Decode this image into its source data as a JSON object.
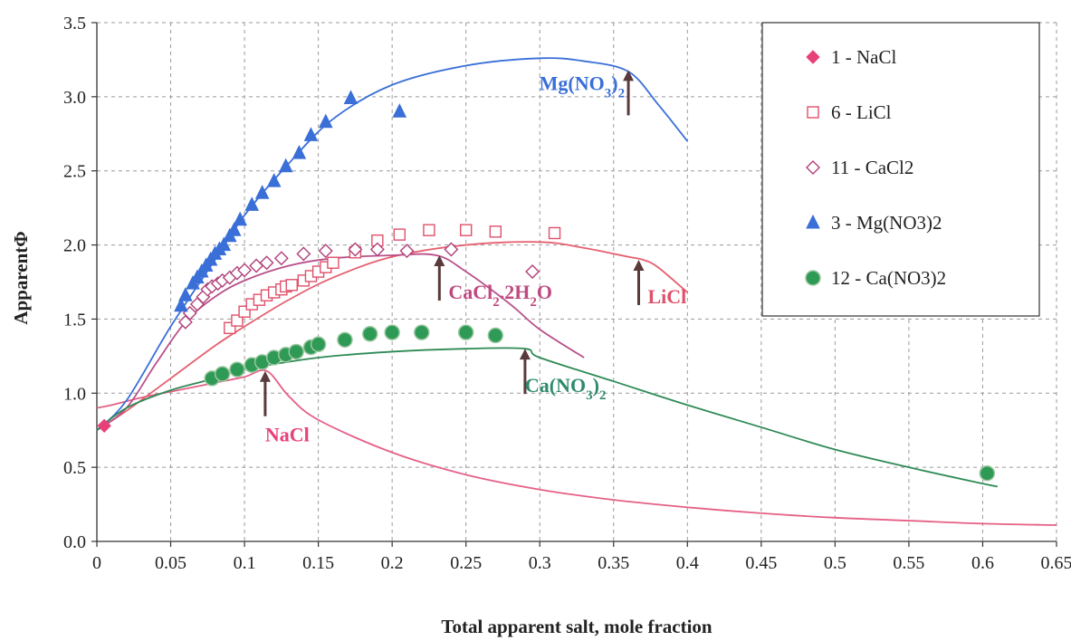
{
  "chart_data": {
    "type": "scatter",
    "xlabel": "Total apparent salt, mole fraction",
    "ylabel": "ApparentΦ",
    "xlim": [
      0,
      0.65
    ],
    "ylim": [
      0,
      3.5
    ],
    "x_ticks": [
      "0",
      "0.05",
      "0.1",
      "0.15",
      "0.2",
      "0.25",
      "0.3",
      "0.35",
      "0.4",
      "0.45",
      "0.5",
      "0.55",
      "0.6",
      "0.65"
    ],
    "y_ticks": [
      "0.0",
      "0.5",
      "1.0",
      "1.5",
      "2.0",
      "2.5",
      "3.0",
      "3.5"
    ],
    "grid": "dashed",
    "legend_position": "top-right",
    "series": [
      {
        "name": "1 - NaCl",
        "marker": "diamond-filled",
        "color": "#e8407a",
        "points": [
          [
            0.005,
            0.78
          ]
        ]
      },
      {
        "name": "6 - LiCl",
        "marker": "square-open",
        "color": "#e0506a",
        "points": [
          [
            0.09,
            1.44
          ],
          [
            0.095,
            1.49
          ],
          [
            0.1,
            1.55
          ],
          [
            0.105,
            1.6
          ],
          [
            0.11,
            1.63
          ],
          [
            0.115,
            1.66
          ],
          [
            0.12,
            1.68
          ],
          [
            0.125,
            1.7
          ],
          [
            0.128,
            1.72
          ],
          [
            0.132,
            1.73
          ],
          [
            0.14,
            1.76
          ],
          [
            0.145,
            1.79
          ],
          [
            0.15,
            1.82
          ],
          [
            0.155,
            1.85
          ],
          [
            0.16,
            1.88
          ],
          [
            0.175,
            1.95
          ],
          [
            0.19,
            2.03
          ],
          [
            0.205,
            2.07
          ],
          [
            0.225,
            2.1
          ],
          [
            0.25,
            2.1
          ],
          [
            0.27,
            2.09
          ],
          [
            0.31,
            2.08
          ]
        ]
      },
      {
        "name": "11 - CaCl2",
        "marker": "diamond-open",
        "color": "#b0407a",
        "points": [
          [
            0.06,
            1.48
          ],
          [
            0.063,
            1.54
          ],
          [
            0.068,
            1.6
          ],
          [
            0.072,
            1.65
          ],
          [
            0.075,
            1.7
          ],
          [
            0.078,
            1.72
          ],
          [
            0.082,
            1.74
          ],
          [
            0.085,
            1.76
          ],
          [
            0.09,
            1.78
          ],
          [
            0.095,
            1.81
          ],
          [
            0.1,
            1.83
          ],
          [
            0.108,
            1.86
          ],
          [
            0.115,
            1.88
          ],
          [
            0.125,
            1.91
          ],
          [
            0.14,
            1.94
          ],
          [
            0.155,
            1.96
          ],
          [
            0.175,
            1.97
          ],
          [
            0.19,
            1.97
          ],
          [
            0.21,
            1.96
          ],
          [
            0.24,
            1.97
          ],
          [
            0.295,
            1.82
          ]
        ]
      },
      {
        "name": "3 - Mg(NO3)2",
        "marker": "triangle-filled",
        "color": "#3a6fd8",
        "points": [
          [
            0.057,
            1.59
          ],
          [
            0.06,
            1.66
          ],
          [
            0.065,
            1.74
          ],
          [
            0.068,
            1.78
          ],
          [
            0.071,
            1.82
          ],
          [
            0.074,
            1.86
          ],
          [
            0.077,
            1.9
          ],
          [
            0.08,
            1.94
          ],
          [
            0.083,
            1.97
          ],
          [
            0.086,
            2.0
          ],
          [
            0.09,
            2.06
          ],
          [
            0.093,
            2.1
          ],
          [
            0.097,
            2.17
          ],
          [
            0.105,
            2.27
          ],
          [
            0.112,
            2.35
          ],
          [
            0.12,
            2.43
          ],
          [
            0.128,
            2.53
          ],
          [
            0.137,
            2.62
          ],
          [
            0.145,
            2.74
          ],
          [
            0.155,
            2.83
          ],
          [
            0.172,
            2.99
          ],
          [
            0.205,
            2.9
          ]
        ]
      },
      {
        "name": "12 - Ca(NO3)2",
        "marker": "circle-filled",
        "color": "#2e9a55",
        "points": [
          [
            0.078,
            1.1
          ],
          [
            0.085,
            1.13
          ],
          [
            0.095,
            1.16
          ],
          [
            0.105,
            1.19
          ],
          [
            0.112,
            1.21
          ],
          [
            0.12,
            1.24
          ],
          [
            0.128,
            1.26
          ],
          [
            0.135,
            1.28
          ],
          [
            0.145,
            1.31
          ],
          [
            0.15,
            1.33
          ],
          [
            0.168,
            1.36
          ],
          [
            0.185,
            1.4
          ],
          [
            0.2,
            1.41
          ],
          [
            0.22,
            1.41
          ],
          [
            0.25,
            1.41
          ],
          [
            0.27,
            1.39
          ],
          [
            0.603,
            0.46
          ]
        ]
      }
    ],
    "model_curves": [
      {
        "label": "NaCl",
        "color": "#e56086",
        "points": [
          [
            0.0,
            0.9
          ],
          [
            0.01,
            0.92
          ],
          [
            0.03,
            0.97
          ],
          [
            0.06,
            1.03
          ],
          [
            0.08,
            1.07
          ],
          [
            0.1,
            1.11
          ],
          [
            0.115,
            1.15
          ],
          [
            0.13,
            0.98
          ],
          [
            0.15,
            0.82
          ],
          [
            0.2,
            0.6
          ],
          [
            0.25,
            0.45
          ],
          [
            0.3,
            0.35
          ],
          [
            0.35,
            0.28
          ],
          [
            0.4,
            0.23
          ],
          [
            0.45,
            0.19
          ],
          [
            0.5,
            0.16
          ],
          [
            0.55,
            0.14
          ],
          [
            0.6,
            0.12
          ],
          [
            0.65,
            0.11
          ]
        ]
      },
      {
        "label": "LiCl",
        "color": "#e56070",
        "points": [
          [
            0.0,
            0.75
          ],
          [
            0.02,
            0.88
          ],
          [
            0.05,
            1.1
          ],
          [
            0.08,
            1.32
          ],
          [
            0.1,
            1.45
          ],
          [
            0.13,
            1.63
          ],
          [
            0.16,
            1.78
          ],
          [
            0.2,
            1.92
          ],
          [
            0.25,
            2.0
          ],
          [
            0.3,
            2.02
          ],
          [
            0.33,
            1.98
          ],
          [
            0.36,
            1.92
          ],
          [
            0.37,
            1.9
          ],
          [
            0.38,
            1.85
          ],
          [
            0.4,
            1.68
          ]
        ]
      },
      {
        "label": "CaCl2",
        "color": "#b8508a",
        "points": [
          [
            0.0,
            0.75
          ],
          [
            0.02,
            0.9
          ],
          [
            0.04,
            1.2
          ],
          [
            0.06,
            1.48
          ],
          [
            0.08,
            1.65
          ],
          [
            0.1,
            1.76
          ],
          [
            0.13,
            1.86
          ],
          [
            0.16,
            1.91
          ],
          [
            0.2,
            1.93
          ],
          [
            0.23,
            1.93
          ],
          [
            0.25,
            1.82
          ],
          [
            0.28,
            1.6
          ],
          [
            0.3,
            1.43
          ],
          [
            0.33,
            1.24
          ]
        ]
      },
      {
        "label": "Mg(NO3)2",
        "color": "#3a6fd8",
        "points": [
          [
            0.0,
            0.75
          ],
          [
            0.02,
            0.95
          ],
          [
            0.05,
            1.45
          ],
          [
            0.08,
            1.9
          ],
          [
            0.1,
            2.2
          ],
          [
            0.13,
            2.55
          ],
          [
            0.16,
            2.85
          ],
          [
            0.2,
            3.08
          ],
          [
            0.25,
            3.21
          ],
          [
            0.3,
            3.26
          ],
          [
            0.33,
            3.24
          ],
          [
            0.36,
            3.17
          ],
          [
            0.38,
            2.95
          ],
          [
            0.4,
            2.7
          ]
        ]
      },
      {
        "label": "Ca(NO3)2",
        "color": "#2e8a55",
        "points": [
          [
            0.0,
            0.75
          ],
          [
            0.02,
            0.9
          ],
          [
            0.05,
            1.02
          ],
          [
            0.08,
            1.1
          ],
          [
            0.1,
            1.16
          ],
          [
            0.15,
            1.24
          ],
          [
            0.2,
            1.28
          ],
          [
            0.25,
            1.3
          ],
          [
            0.29,
            1.3
          ],
          [
            0.3,
            1.24
          ],
          [
            0.35,
            1.08
          ],
          [
            0.4,
            0.92
          ],
          [
            0.45,
            0.77
          ],
          [
            0.5,
            0.62
          ],
          [
            0.55,
            0.5
          ],
          [
            0.6,
            0.39
          ],
          [
            0.61,
            0.37
          ]
        ]
      }
    ],
    "annotations": [
      {
        "html": "Mg(NO<tspan baseline-shift='sub' font-size='15'>3</tspan>)<tspan baseline-shift='sub' font-size='15'>2</tspan>",
        "text": "Mg(NO3)2",
        "color": "#3a6fd8",
        "x": 0.36,
        "y": 3.18
      },
      {
        "html": "CaCl<tspan baseline-shift='sub' font-size='15'>2</tspan>.2H<tspan baseline-shift='sub' font-size='15'>2</tspan>O",
        "text": "CaCl2.2H2O",
        "color": "#c04a80",
        "x": 0.232,
        "y": 1.93
      },
      {
        "html": "LiCl",
        "text": "LiCl",
        "color": "#e0506a",
        "x": 0.367,
        "y": 1.9
      },
      {
        "html": "NaCl",
        "text": "NaCl",
        "color": "#e8407a",
        "x": 0.114,
        "y": 1.15
      },
      {
        "html": "Ca(NO<tspan baseline-shift='sub' font-size='15'>3</tspan>)<tspan baseline-shift='sub' font-size='15'>2</tspan>",
        "text": "Ca(NO3)2",
        "color": "#2e8a6a",
        "x": 0.29,
        "y": 1.3
      }
    ]
  }
}
